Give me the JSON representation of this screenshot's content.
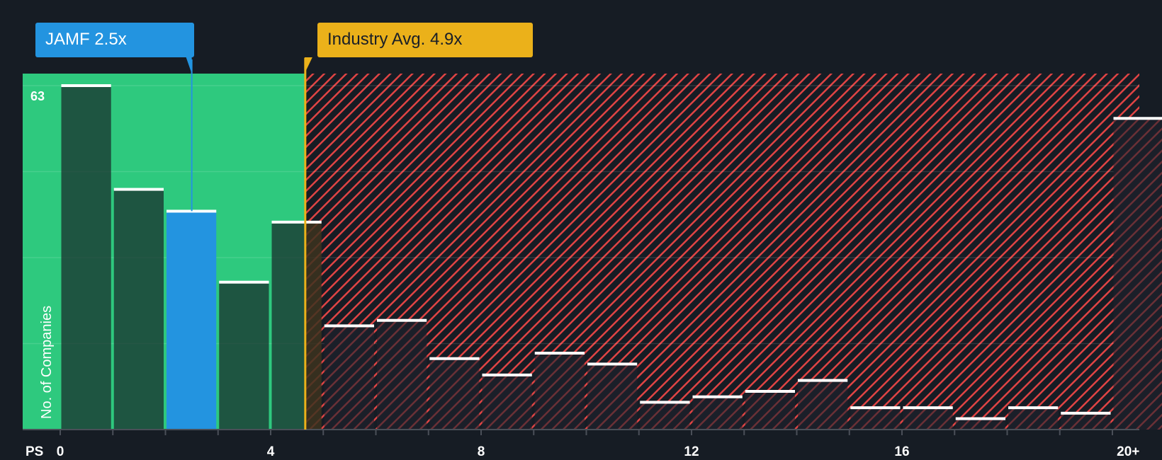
{
  "chart_data": {
    "type": "bar",
    "title": "",
    "xlabel": "PS",
    "ylabel": "No. of Companies",
    "x_tick_labels": [
      "0",
      "4",
      "8",
      "12",
      "16",
      "20+"
    ],
    "y_tick_labels": [
      "63"
    ],
    "ylim": [
      0,
      63
    ],
    "grid": true,
    "categories": [
      "0-1",
      "1-2",
      "2-3",
      "3-4",
      "4-5",
      "5-6",
      "6-7",
      "7-8",
      "8-9",
      "9-10",
      "10-11",
      "11-12",
      "12-13",
      "13-14",
      "14-15",
      "15-16",
      "16-17",
      "17-18",
      "18-19",
      "19-20",
      "20+"
    ],
    "values": [
      63,
      44,
      40,
      27,
      38,
      19,
      20,
      13,
      10,
      14,
      12,
      5,
      6,
      7,
      9,
      4,
      4,
      2,
      4,
      3,
      57
    ],
    "highlight_bin_index": 2,
    "annotations": [
      {
        "label": "JAMF 2.5x",
        "x": 2.5,
        "color": "#2394e0"
      },
      {
        "label": "Industry Avg. 4.9x",
        "x": 4.9,
        "color": "#ebb11a"
      }
    ],
    "regions": [
      {
        "name": "below-average",
        "from": 0,
        "to": 4.9,
        "color": "#2ec97e"
      },
      {
        "name": "above-average",
        "from": 4.9,
        "to": 21,
        "color": "#e04040",
        "pattern": "diagonal-hatch"
      }
    ]
  },
  "labels": {
    "company": "JAMF 2.5x",
    "industry": "Industry Avg. 4.9x",
    "y_axis": "No. of Companies",
    "x_axis": "PS",
    "y_max": "63"
  },
  "colors": {
    "background": "#161c24",
    "green_zone": "#2ec97e",
    "bar_dark": "#1f4a3c",
    "company_bar": "#2394e0",
    "industry": "#ebb11a",
    "hatch": "#e04040"
  }
}
